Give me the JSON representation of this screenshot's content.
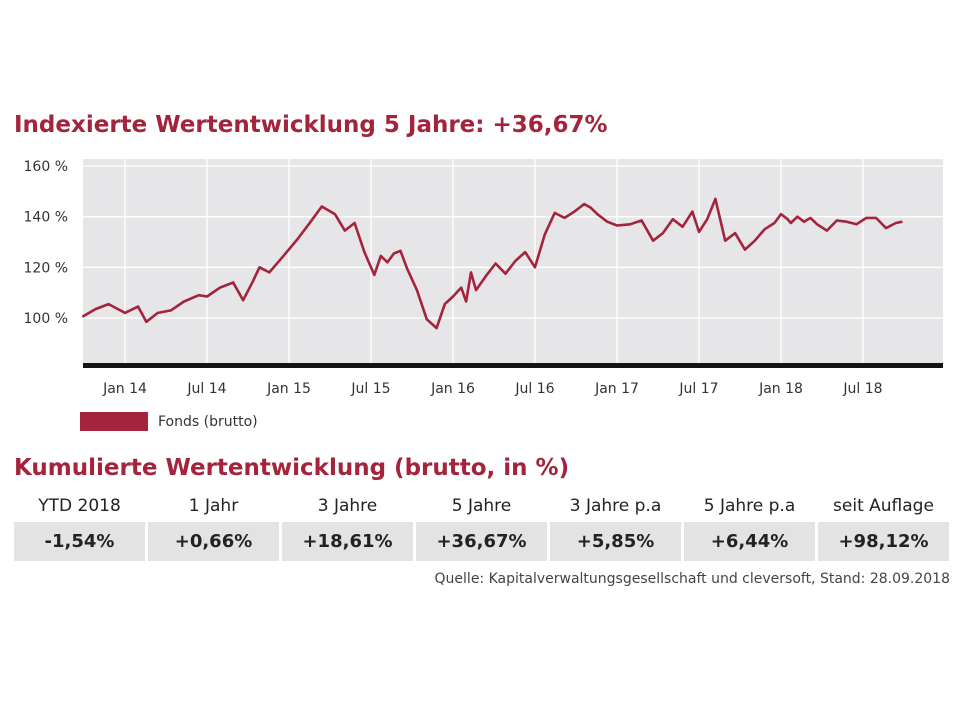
{
  "title": "Indexierte Wertentwicklung 5 Jahre: +36,67%",
  "chart_data": {
    "type": "line",
    "title": "Indexierte Wertentwicklung 5 Jahre: +36,67%",
    "xlabel": "",
    "ylabel": "",
    "x_tick_labels": [
      "Jan 14",
      "Jul 14",
      "Jan 15",
      "Jul 15",
      "Jan 16",
      "Jul 16",
      "Jan 17",
      "Jul 17",
      "Jan 18",
      "Jul 18"
    ],
    "y_tick_labels": [
      "160 %",
      "140 %",
      "120 %",
      "100 %"
    ],
    "ylim": [
      80,
      162
    ],
    "grid": true,
    "legend": "bottom-left",
    "series": [
      {
        "name": "Fonds (brutto)",
        "color": "#a3243b",
        "x": [
          2013.74,
          2013.82,
          2013.9,
          2014.0,
          2014.08,
          2014.13,
          2014.2,
          2014.28,
          2014.36,
          2014.45,
          2014.5,
          2014.58,
          2014.66,
          2014.72,
          2014.78,
          2014.82,
          2014.88,
          2014.96,
          2015.05,
          2015.12,
          2015.2,
          2015.28,
          2015.34,
          2015.4,
          2015.46,
          2015.52,
          2015.56,
          2015.6,
          2015.64,
          2015.68,
          2015.72,
          2015.78,
          2015.84,
          2015.9,
          2015.95,
          2016.0,
          2016.05,
          2016.08,
          2016.11,
          2016.14,
          2016.2,
          2016.26,
          2016.32,
          2016.38,
          2016.44,
          2016.5,
          2016.56,
          2016.62,
          2016.68,
          2016.74,
          2016.8,
          2016.84,
          2016.88,
          2016.94,
          2017.0,
          2017.08,
          2017.15,
          2017.22,
          2017.28,
          2017.34,
          2017.4,
          2017.46,
          2017.5,
          2017.55,
          2017.6,
          2017.66,
          2017.72,
          2017.78,
          2017.84,
          2017.9,
          2017.96,
          2018.0,
          2018.04,
          2018.06,
          2018.1,
          2018.14,
          2018.18,
          2018.22,
          2018.28,
          2018.34,
          2018.4,
          2018.46,
          2018.52,
          2018.58,
          2018.64,
          2018.7,
          2018.74
        ],
        "y": [
          100.5,
          103.5,
          105.5,
          102.0,
          104.5,
          98.5,
          102.0,
          103.0,
          106.5,
          109.0,
          108.5,
          112.0,
          114.0,
          107.0,
          114.5,
          120.0,
          118.0,
          124.0,
          131.0,
          137.0,
          144.0,
          141.0,
          134.5,
          137.5,
          126.0,
          117.0,
          124.5,
          122.0,
          125.5,
          126.5,
          119.5,
          111.0,
          99.5,
          96.0,
          105.5,
          108.5,
          112.0,
          106.5,
          118.0,
          111.0,
          116.5,
          121.5,
          117.5,
          122.5,
          126.0,
          120.0,
          133.0,
          141.5,
          139.5,
          142.0,
          145.0,
          143.5,
          141.0,
          138.0,
          136.5,
          137.0,
          138.5,
          130.5,
          133.5,
          139.0,
          136.0,
          142.0,
          134.0,
          139.0,
          147.0,
          130.5,
          133.5,
          127.0,
          130.5,
          135.0,
          137.5,
          141.0,
          139.0,
          137.5,
          140.0,
          138.0,
          139.5,
          137.0,
          134.5,
          138.5,
          138.0,
          137.0,
          139.5,
          139.5,
          135.5,
          137.5,
          138.0
        ]
      }
    ]
  },
  "legend": {
    "label": "Fonds (brutto)",
    "color": "#a3243b"
  },
  "cumulative": {
    "title": "Kumulierte Wertentwicklung (brutto, in %)",
    "headers": [
      "YTD 2018",
      "1 Jahr",
      "3 Jahre",
      "5 Jahre",
      "3 Jahre p.a",
      "5 Jahre p.a",
      "seit Auflage"
    ],
    "values": [
      "-1,54%",
      "+0,66%",
      "+18,61%",
      "+36,67%",
      "+5,85%",
      "+6,44%",
      "+98,12%"
    ]
  },
  "source": "Quelle: Kapitalverwaltungsgesellschaft und cleversoft, Stand: 28.09.2018",
  "colors": {
    "accent": "#a3243b",
    "plot_background": "#e6e6e8",
    "cell_background": "#e3e3e3"
  }
}
